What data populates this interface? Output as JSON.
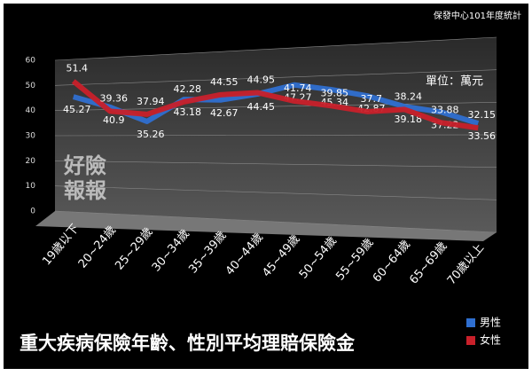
{
  "chart_data": {
    "type": "line",
    "title": "重大疾病保險年齡、性別平均理賠保險金",
    "source": "保發中心101年度統計",
    "unit": "單位：萬元",
    "watermark": [
      "好險",
      "報報"
    ],
    "categories": [
      "19歲以下",
      "20~24歲",
      "25~29歲",
      "30~34歲",
      "35~39歲",
      "40~44歲",
      "45~49歲",
      "50~54歲",
      "55~59歲",
      "60~64歲",
      "65~69歲",
      "70歲以上"
    ],
    "series": [
      {
        "name": "男性",
        "color": "#2f6fd0",
        "values": [
          45.27,
          40.9,
          35.26,
          43.18,
          42.67,
          44.45,
          47.27,
          45.34,
          42.87,
          39.18,
          37.22,
          33.56
        ]
      },
      {
        "name": "女性",
        "color": "#c8202a",
        "values": [
          51.4,
          39.36,
          37.94,
          42.28,
          44.55,
          44.95,
          41.74,
          39.85,
          37.7,
          38.24,
          33.88,
          32.15
        ]
      }
    ],
    "ylim": [
      0,
      60
    ],
    "yticks": [
      0,
      10,
      20,
      30,
      40,
      50,
      60
    ],
    "grid": true,
    "legend": "bottom-right"
  }
}
